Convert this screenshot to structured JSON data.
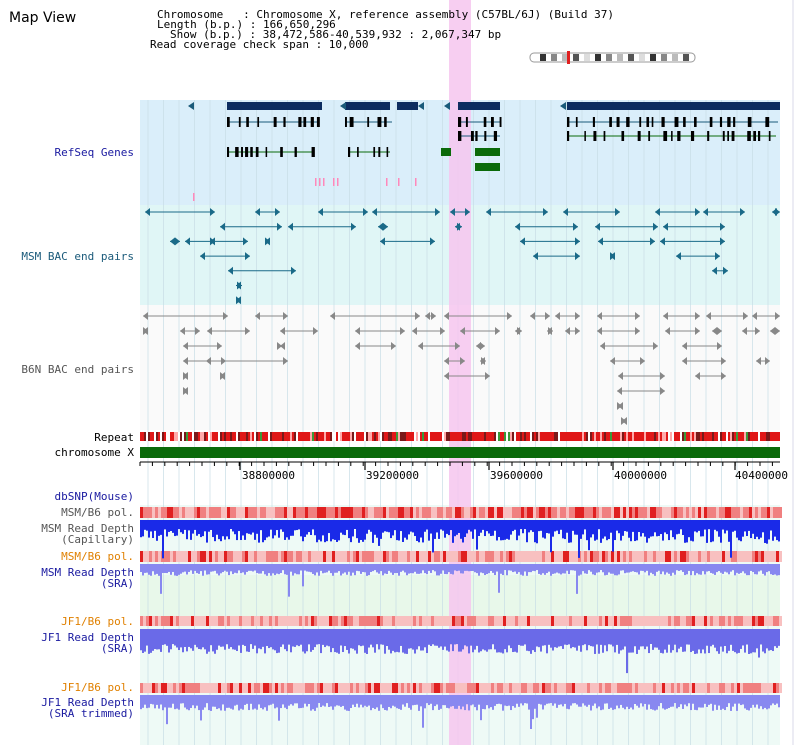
{
  "title": "Map View",
  "header": {
    "chromosome_line": "Chromosome   : Chromosome X, reference assembly (C57BL/6J) (Build 37)",
    "length_line": "Length (b.p.) : 166,650,296",
    "show_line": "Show (b.p.) : 38,472,586-40,539,932 : 2,067,347 bp",
    "coverage_line": "Read coverage check span : 10,000"
  },
  "tracks": {
    "refseq": "RefSeq Genes",
    "msm_bac": "MSM BAC end pairs",
    "b6n_bac": "B6N BAC end pairs",
    "repeat": "Repeat",
    "chromosome": "chromosome X",
    "dbsnp": "dbSNP(Mouse)",
    "msm_b6_pol_1": "MSM/B6 pol.",
    "msm_read_depth_cap": "MSM Read Depth\n(Capillary)",
    "msm_b6_pol_2": "MSM/B6 pol.",
    "msm_read_depth_sra": "MSM Read Depth\n(SRA)",
    "jf1_b6_pol_1": "JF1/B6 pol.",
    "jf1_read_depth_sra": "JF1 Read Depth\n(SRA)",
    "jf1_b6_pol_2": "JF1/B6 pol.",
    "jf1_read_depth_trim": "JF1 Read Depth\n(SRA trimmed)"
  },
  "axis": {
    "ticks": [
      "38800000",
      "39200000",
      "39600000",
      "40000000",
      "40400000"
    ]
  },
  "colors": {
    "label_blue": "#1a1aa0",
    "label_teal": "#1a5a7a",
    "label_gray": "#555555",
    "label_orange": "#e08000",
    "refseq_bg": "#daeefa",
    "bac_bg": "#e0f6f6",
    "depth_bg": "#e6f9f6",
    "highlight": "#f6c6ee",
    "gene_dark": "#0d2c60",
    "gene_green": "#0a6a0a",
    "chrom_green": "#0a6a0a"
  }
}
